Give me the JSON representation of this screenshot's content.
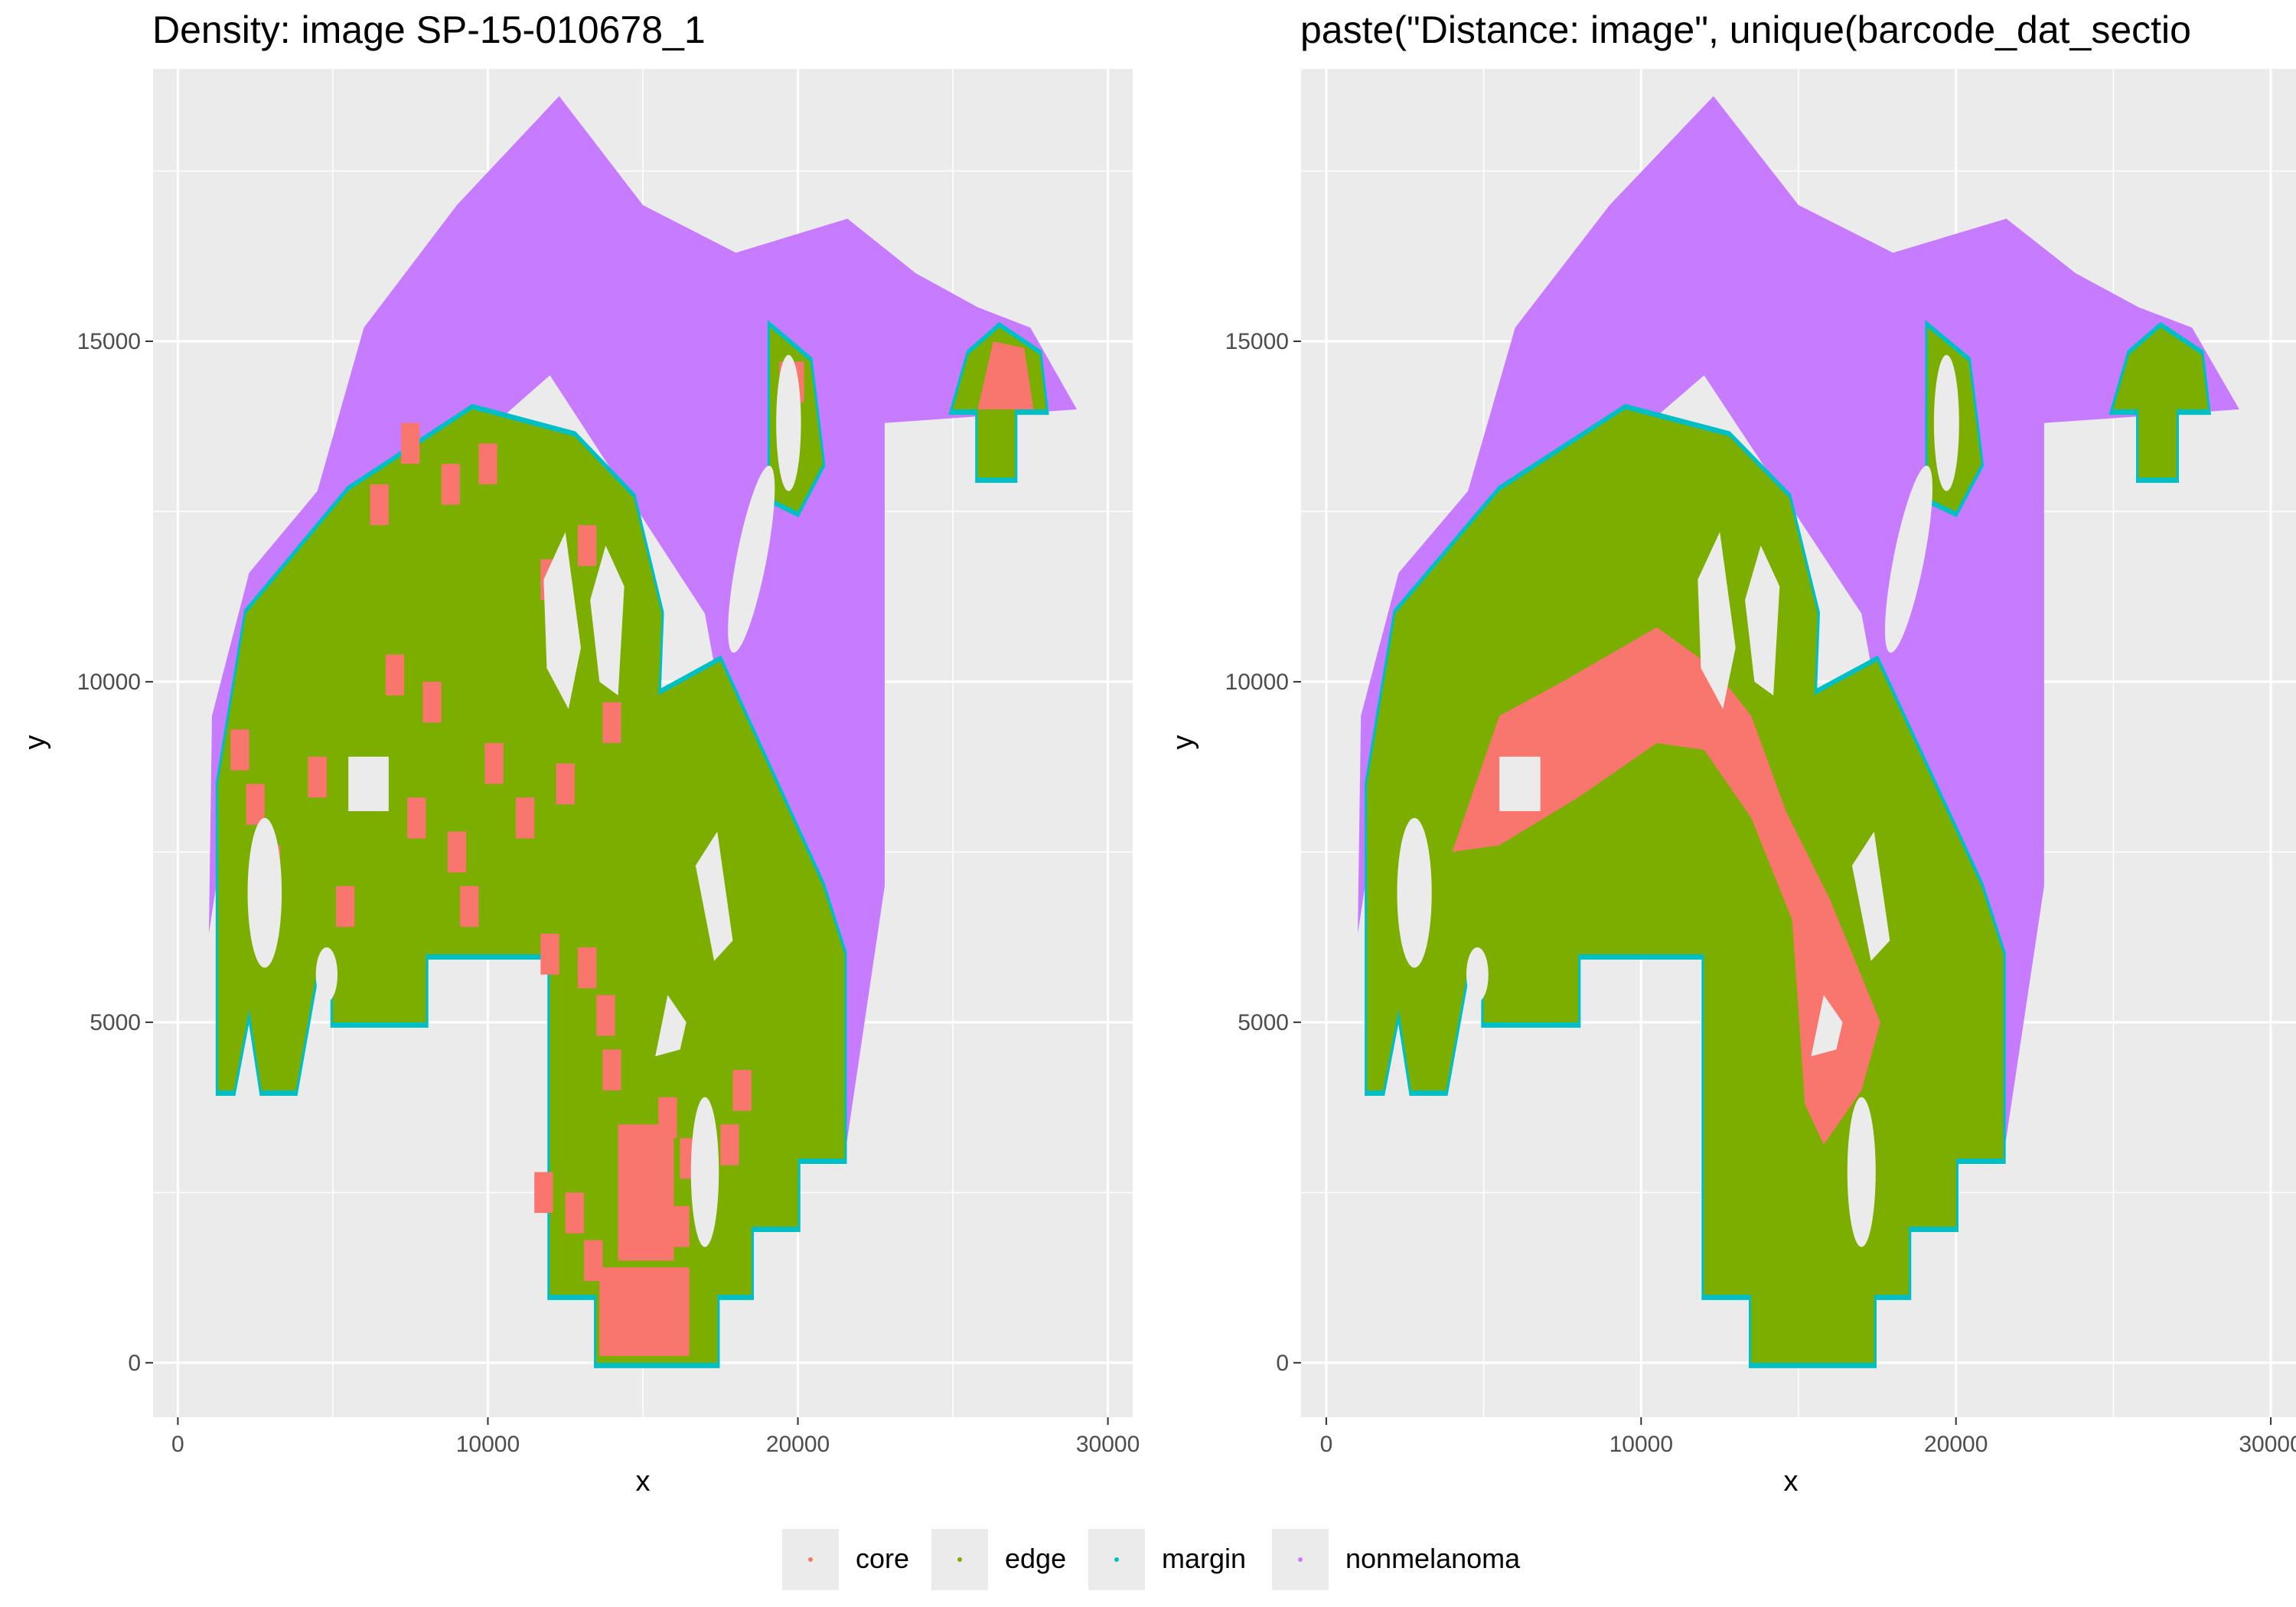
{
  "chart_data": [
    {
      "type": "scatter",
      "title": "Density: image SP-15-010678_1",
      "xlabel": "x",
      "ylabel": "y",
      "xlim": [
        -800,
        30800
      ],
      "ylim": [
        -800,
        19000
      ],
      "xticks": [
        0,
        10000,
        20000,
        30000
      ],
      "yticks": [
        0,
        5000,
        10000,
        15000
      ],
      "xtick_labels": [
        "0",
        "10000",
        "20000",
        "30000"
      ],
      "ytick_labels": [
        "0",
        "5000",
        "10000",
        "15000"
      ],
      "grid": true,
      "series": [
        {
          "name": "core",
          "values": [],
          "description": "scattered square patches within the tumor body, dense cluster near x≈14000–17000, y≈500–4000, and a cap near x≈26000, y≈14500"
        },
        {
          "name": "edge",
          "values": [],
          "description": "tumor body spanning roughly x 1300–21500, y 0–14000"
        },
        {
          "name": "margin",
          "values": [],
          "description": "thin rim along the tumor border"
        },
        {
          "name": "nonmelanoma",
          "values": [],
          "description": "surrounding tissue, roughly x 1000–29000, y 3000–18500"
        }
      ]
    },
    {
      "type": "scatter",
      "title": "paste(\"Distance: image\", unique(barcode_dat_sectio",
      "xlabel": "x",
      "ylabel": "y",
      "xlim": [
        -800,
        30800
      ],
      "ylim": [
        -800,
        19000
      ],
      "xticks": [
        0,
        10000,
        20000,
        30000
      ],
      "yticks": [
        0,
        5000,
        10000,
        15000
      ],
      "xtick_labels": [
        "0",
        "10000",
        "20000",
        "30000"
      ],
      "ytick_labels": [
        "0",
        "5000",
        "10000",
        "15000"
      ],
      "grid": true,
      "series": [
        {
          "name": "core",
          "values": [],
          "description": "contiguous band from about (4000, 7500) through (10500, 10800) down to (15500, 3200)"
        },
        {
          "name": "edge",
          "values": [],
          "description": "tumor body spanning roughly x 1300–21500, y 0–14000"
        },
        {
          "name": "margin",
          "values": [],
          "description": "thin rim along the tumor border"
        },
        {
          "name": "nonmelanoma",
          "values": [],
          "description": "surrounding tissue, roughly x 1000–29000, y 3000–18500"
        }
      ]
    }
  ],
  "legend": {
    "placement": "bottom",
    "items": [
      {
        "label": "core",
        "color": "#F8766D"
      },
      {
        "label": "edge",
        "color": "#7CAE00"
      },
      {
        "label": "margin",
        "color": "#00BFC4"
      },
      {
        "label": "nonmelanoma",
        "color": "#C77CFF"
      }
    ]
  },
  "colors": {
    "panel_bg": "#EBEBEB",
    "grid_major": "#FFFFFF",
    "core": "#F8766D",
    "edge": "#7CAE00",
    "margin": "#00BFC4",
    "nonmelanoma": "#C77CFF",
    "text": "#000000",
    "tick_text": "#4D4D4D"
  }
}
